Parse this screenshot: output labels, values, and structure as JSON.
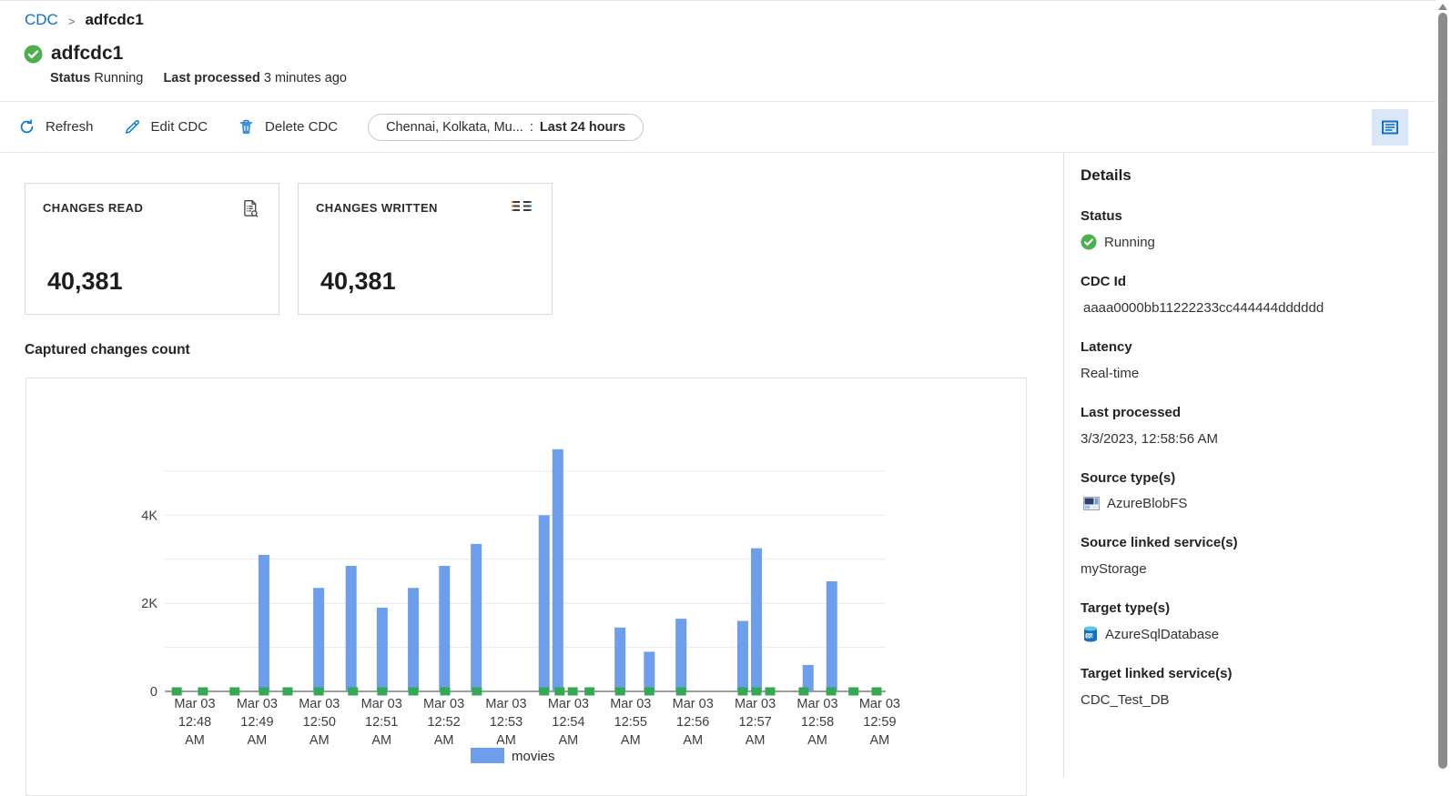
{
  "breadcrumb": {
    "root": "CDC",
    "separator": ">",
    "current": "adfcdc1"
  },
  "header": {
    "title": "adfcdc1",
    "status_label": "Status",
    "status_value": "Running",
    "last_processed_label": "Last processed",
    "last_processed_value": "3 minutes ago"
  },
  "toolbar": {
    "refresh_label": "Refresh",
    "edit_label": "Edit CDC",
    "delete_label": "Delete CDC",
    "filter_pill": {
      "tables_text": "Chennai, Kolkata, Mu...",
      "separator": ":",
      "range_text": "Last 24 hours"
    },
    "icons": {
      "refresh": "circular-arrow",
      "edit": "pencil",
      "delete": "trash",
      "panel_toggle": "details-list-pane"
    }
  },
  "metric_cards": [
    {
      "title": "CHANGES READ",
      "value": "40,381",
      "icon": "document-search"
    },
    {
      "title": "CHANGES WRITTEN",
      "value": "40,381",
      "icon": "list-columns"
    }
  ],
  "chart_heading": "Captured changes count",
  "chart_data": {
    "type": "bar",
    "title": "Captured changes count",
    "xlabel": "",
    "ylabel": "",
    "ylim": [
      0,
      5700
    ],
    "grid": true,
    "gridline_values": [
      1000,
      2000,
      3000,
      4000,
      5000
    ],
    "y_ticks": [
      {
        "value": 0,
        "label": "0"
      },
      {
        "value": 2000,
        "label": "2K"
      },
      {
        "value": 4000,
        "label": "4K"
      }
    ],
    "x_ticks": [
      {
        "date": "Mar 03",
        "time": "12:48",
        "ampm": "AM"
      },
      {
        "date": "Mar 03",
        "time": "12:49",
        "ampm": "AM"
      },
      {
        "date": "Mar 03",
        "time": "12:50",
        "ampm": "AM"
      },
      {
        "date": "Mar 03",
        "time": "12:51",
        "ampm": "AM"
      },
      {
        "date": "Mar 03",
        "time": "12:52",
        "ampm": "AM"
      },
      {
        "date": "Mar 03",
        "time": "12:53",
        "ampm": "AM"
      },
      {
        "date": "Mar 03",
        "time": "12:54",
        "ampm": "AM"
      },
      {
        "date": "Mar 03",
        "time": "12:55",
        "ampm": "AM"
      },
      {
        "date": "Mar 03",
        "time": "12:56",
        "ampm": "AM"
      },
      {
        "date": "Mar 03",
        "time": "12:57",
        "ampm": "AM"
      },
      {
        "date": "Mar 03",
        "time": "12:58",
        "ampm": "AM"
      },
      {
        "date": "Mar 03",
        "time": "12:59",
        "ampm": "AM"
      }
    ],
    "x_unit": "minutes offset from the 12:48 AM tick",
    "legend_position": "bottom",
    "legend": [
      {
        "label": "movies",
        "color": "#6D9EEB"
      }
    ],
    "series": [
      {
        "name": "movies",
        "type": "bar",
        "color": "#6D9EEB",
        "points": [
          {
            "t": 1.11,
            "count": 3100
          },
          {
            "t": 1.99,
            "count": 2350
          },
          {
            "t": 2.51,
            "count": 2850
          },
          {
            "t": 3.01,
            "count": 1900
          },
          {
            "t": 3.51,
            "count": 2350
          },
          {
            "t": 4.01,
            "count": 2850
          },
          {
            "t": 4.52,
            "count": 3350
          },
          {
            "t": 5.61,
            "count": 4000
          },
          {
            "t": 5.83,
            "count": 5500
          },
          {
            "t": 6.83,
            "count": 1450
          },
          {
            "t": 7.3,
            "count": 900
          },
          {
            "t": 7.81,
            "count": 1650
          },
          {
            "t": 8.8,
            "count": 1600
          },
          {
            "t": 9.02,
            "count": 3250
          },
          {
            "t": 9.85,
            "count": 600
          },
          {
            "t": 10.23,
            "count": 2500
          }
        ]
      },
      {
        "name": "zero-change markers",
        "type": "square_marker",
        "color": "#34A853",
        "points": [
          {
            "t": -0.29,
            "count": 0
          },
          {
            "t": 0.13,
            "count": 0
          },
          {
            "t": 0.64,
            "count": 0
          },
          {
            "t": 1.11,
            "count": 0
          },
          {
            "t": 1.49,
            "count": 0
          },
          {
            "t": 1.99,
            "count": 0
          },
          {
            "t": 2.54,
            "count": 0
          },
          {
            "t": 3.01,
            "count": 0
          },
          {
            "t": 3.51,
            "count": 0
          },
          {
            "t": 4.02,
            "count": 0
          },
          {
            "t": 4.53,
            "count": 0
          },
          {
            "t": 5.61,
            "count": 0
          },
          {
            "t": 5.86,
            "count": 0
          },
          {
            "t": 6.07,
            "count": 0
          },
          {
            "t": 6.34,
            "count": 0
          },
          {
            "t": 6.83,
            "count": 0
          },
          {
            "t": 7.3,
            "count": 0
          },
          {
            "t": 7.81,
            "count": 0
          },
          {
            "t": 8.8,
            "count": 0
          },
          {
            "t": 9.02,
            "count": 0
          },
          {
            "t": 9.24,
            "count": 0
          },
          {
            "t": 9.78,
            "count": 0
          },
          {
            "t": 10.22,
            "count": 0
          },
          {
            "t": 10.58,
            "count": 0
          },
          {
            "t": 10.95,
            "count": 0
          }
        ]
      }
    ]
  },
  "details_panel": {
    "title": "Details",
    "fields": [
      {
        "label": "Status",
        "value": "Running",
        "icon": "status-running-check"
      },
      {
        "label": "CDC Id",
        "value": "aaaa0000bb11222233cc444444dddddd"
      },
      {
        "label": "Latency",
        "value": "Real-time"
      },
      {
        "label": "Last processed",
        "value": "3/3/2023, 12:58:56 AM"
      },
      {
        "label": "Source type(s)",
        "value": "AzureBlobFS",
        "icon": "azure-blobfs"
      },
      {
        "label": "Source linked service(s)",
        "value": "myStorage"
      },
      {
        "label": "Target type(s)",
        "value": "AzureSqlDatabase",
        "icon": "azure-sql-database"
      },
      {
        "label": "Target linked service(s)",
        "value": "CDC_Test_DB"
      }
    ]
  },
  "colors": {
    "accent_blue": "#0078d4",
    "bar_blue": "#6D9EEB",
    "marker_green": "#34A853",
    "status_green": "#4CAF50"
  }
}
